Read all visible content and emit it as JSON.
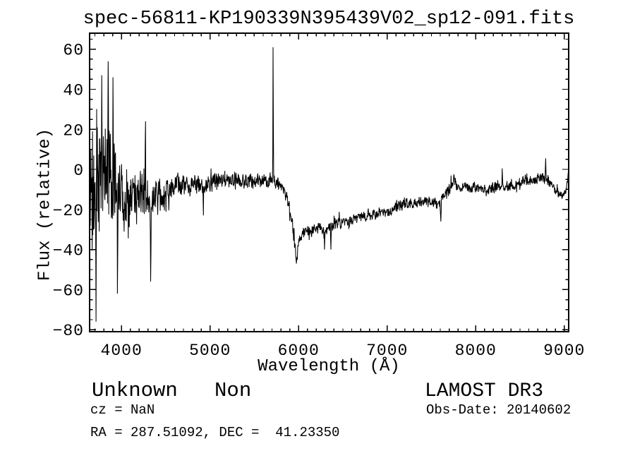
{
  "window": {
    "background": "#ffffff",
    "foreground": "#000000"
  },
  "figure": {
    "title": "spec-56811-KP190339N395439V02_sp12-091.fits"
  },
  "annotations": {
    "classification": "Unknown   Non",
    "survey": "LAMOST DR3",
    "cz": "cz = NaN",
    "ra_dec": "RA = 287.51092, DEC =  41.23350",
    "obs_date": "Obs-Date: 20140602"
  },
  "chart_data": {
    "type": "line",
    "title": "spec-56811-KP190339N395439V02_sp12-091.fits",
    "xlabel": "Wavelength (Å)",
    "ylabel": "Flux (relative)",
    "xlim": [
      3640,
      9050
    ],
    "ylim": [
      -81,
      68
    ],
    "xticks": [
      4000,
      5000,
      6000,
      7000,
      8000,
      9000
    ],
    "yticks": [
      -80,
      -60,
      -40,
      -20,
      0,
      20,
      40,
      60
    ],
    "x_minor_step": 100,
    "y_minor_step": 5,
    "grid": false,
    "legend": false,
    "line_color": "#000000",
    "series": [
      {
        "name": "flux",
        "description": "noisy stellar spectrum; trend_points are [wavelength, mean_flux, noise_halfamp] read from the plot; features are distinct narrow spikes/dips [peak values]",
        "trend_points": [
          [
            3650,
            -14,
            42
          ],
          [
            3690,
            -12,
            50
          ],
          [
            3730,
            -8,
            52
          ],
          [
            3780,
            -5,
            50
          ],
          [
            3830,
            -5,
            48
          ],
          [
            3880,
            -7,
            42
          ],
          [
            3930,
            -9,
            36
          ],
          [
            4000,
            -10,
            30
          ],
          [
            4080,
            -12,
            27
          ],
          [
            4160,
            -14,
            25
          ],
          [
            4260,
            -14,
            23
          ],
          [
            4360,
            -15,
            20
          ],
          [
            4440,
            -13,
            15
          ],
          [
            4520,
            -10,
            11
          ],
          [
            4620,
            -8,
            10
          ],
          [
            4720,
            -7.5,
            9.5
          ],
          [
            4820,
            -8,
            9
          ],
          [
            4920,
            -8,
            9
          ],
          [
            5020,
            -7,
            8.5
          ],
          [
            5120,
            -6.5,
            8
          ],
          [
            5220,
            -6,
            7.5
          ],
          [
            5320,
            -6,
            7
          ],
          [
            5420,
            -6,
            7
          ],
          [
            5520,
            -5.5,
            6.5
          ],
          [
            5620,
            -5.5,
            6
          ],
          [
            5700,
            -6,
            6
          ],
          [
            5760,
            -7.5,
            6
          ],
          [
            5830,
            -10,
            6
          ],
          [
            5890,
            -18,
            7
          ],
          [
            5940,
            -31,
            8
          ],
          [
            5975,
            -40,
            7
          ],
          [
            6010,
            -36,
            6
          ],
          [
            6060,
            -31,
            5
          ],
          [
            6150,
            -30,
            5
          ],
          [
            6240,
            -29,
            5
          ],
          [
            6320,
            -30,
            6
          ],
          [
            6400,
            -28,
            5
          ],
          [
            6500,
            -26.5,
            5
          ],
          [
            6600,
            -25.5,
            5
          ],
          [
            6700,
            -24,
            5
          ],
          [
            6800,
            -23,
            5
          ],
          [
            6900,
            -22,
            5
          ],
          [
            7000,
            -21,
            5
          ],
          [
            7100,
            -19.5,
            5
          ],
          [
            7200,
            -17.5,
            5
          ],
          [
            7300,
            -16.5,
            4.5
          ],
          [
            7400,
            -16,
            4.5
          ],
          [
            7500,
            -16.5,
            5
          ],
          [
            7570,
            -18,
            5
          ],
          [
            7640,
            -14,
            5
          ],
          [
            7710,
            -9,
            5
          ],
          [
            7760,
            -7,
            5
          ],
          [
            7820,
            -9.5,
            4.5
          ],
          [
            7920,
            -9,
            4.5
          ],
          [
            8020,
            -9,
            4.5
          ],
          [
            8120,
            -9.5,
            5
          ],
          [
            8220,
            -9,
            5
          ],
          [
            8320,
            -8.5,
            5
          ],
          [
            8420,
            -8.5,
            5
          ],
          [
            8520,
            -7,
            5
          ],
          [
            8600,
            -5,
            5
          ],
          [
            8680,
            -4.5,
            5
          ],
          [
            8760,
            -3.5,
            5
          ],
          [
            8830,
            -6,
            5
          ],
          [
            8900,
            -10,
            4
          ],
          [
            8960,
            -13,
            3.5
          ],
          [
            9010,
            -12,
            3.5
          ],
          [
            9035,
            -6,
            3
          ],
          [
            9050,
            -2,
            2
          ]
        ],
        "features": [
          {
            "wavelength": 3712,
            "flux": -76,
            "width": 6
          },
          {
            "wavelength": 3777,
            "flux": 47,
            "width": 6
          },
          {
            "wavelength": 3850,
            "flux": 54,
            "width": 6
          },
          {
            "wavelength": 3905,
            "flux": 46,
            "width": 5
          },
          {
            "wavelength": 3955,
            "flux": -62,
            "width": 5
          },
          {
            "wavelength": 4270,
            "flux": 24,
            "width": 5
          },
          {
            "wavelength": 4330,
            "flux": -56,
            "width": 5
          },
          {
            "wavelength": 4924,
            "flux": -23,
            "width": 5
          },
          {
            "wavelength": 5712,
            "flux": 61,
            "width": 5
          },
          {
            "wavelength": 5975,
            "flux": -47,
            "width": 14
          },
          {
            "wavelength": 6293,
            "flux": -40,
            "width": 6
          },
          {
            "wavelength": 6365,
            "flux": -40,
            "width": 6
          },
          {
            "wavelength": 7605,
            "flux": -26,
            "width": 8
          },
          {
            "wavelength": 7755,
            "flux": -2.5,
            "width": 10
          },
          {
            "wavelength": 8300,
            "flux": 0.5,
            "width": 5
          },
          {
            "wavelength": 8790,
            "flux": 5.5,
            "width": 8
          },
          {
            "wavelength": 9045,
            "flux": -1,
            "width": 5
          }
        ]
      }
    ]
  }
}
